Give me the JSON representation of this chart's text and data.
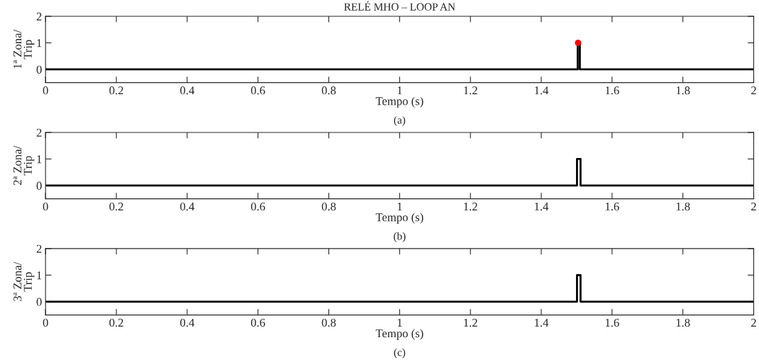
{
  "chart_data": [
    {
      "type": "line",
      "title": "RELÉ MHO – LOOP AN",
      "xlabel": "Tempo (s)",
      "ylabel": "1ª Zona/\nTrip",
      "annotations": [
        "(a)"
      ],
      "xlim": [
        0,
        2
      ],
      "xticks": [
        0,
        0.2,
        0.4,
        0.6,
        0.8,
        1,
        1.2,
        1.4,
        1.6,
        1.8,
        2
      ],
      "ylim": [
        -0.5,
        2
      ],
      "yticks": [
        0,
        1,
        2
      ],
      "series": [
        {
          "color": "#000000",
          "x": [
            0,
            1.503,
            1.503,
            1.509,
            1.509,
            2
          ],
          "values": [
            0,
            0,
            1,
            1,
            0,
            0
          ]
        },
        {
          "type": "scatter",
          "color": "#ff0000",
          "marker": "circle",
          "x": [
            1.504
          ],
          "values": [
            1
          ]
        }
      ]
    },
    {
      "type": "line",
      "xlabel": "Tempo (s)",
      "ylabel": "2ª Zona/\nTrip",
      "annotations": [
        "(b)"
      ],
      "xlim": [
        0,
        2
      ],
      "xticks": [
        0,
        0.2,
        0.4,
        0.6,
        0.8,
        1,
        1.2,
        1.4,
        1.6,
        1.8,
        2
      ],
      "ylim": [
        -0.5,
        2
      ],
      "yticks": [
        0,
        1,
        2
      ],
      "series": [
        {
          "color": "#000000",
          "x": [
            0,
            1.501,
            1.501,
            1.511,
            1.511,
            2
          ],
          "values": [
            0,
            0,
            1,
            1,
            0,
            0
          ]
        }
      ]
    },
    {
      "type": "line",
      "xlabel": "Tempo (s)",
      "ylabel": "3ª Zona/\nTrip",
      "annotations": [
        "(c)"
      ],
      "xlim": [
        0,
        2
      ],
      "xticks": [
        0,
        0.2,
        0.4,
        0.6,
        0.8,
        1,
        1.2,
        1.4,
        1.6,
        1.8,
        2
      ],
      "ylim": [
        -0.5,
        2
      ],
      "yticks": [
        0,
        1,
        2
      ],
      "series": [
        {
          "color": "#000000",
          "x": [
            0,
            1.501,
            1.501,
            1.511,
            1.511,
            2
          ],
          "values": [
            0,
            0,
            1,
            1,
            0,
            0
          ]
        }
      ]
    }
  ]
}
